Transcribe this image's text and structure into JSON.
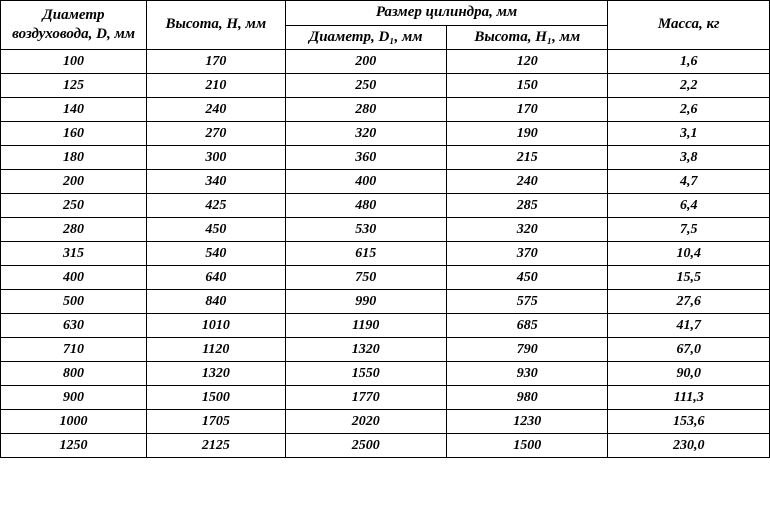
{
  "table": {
    "headers": {
      "diameter": "Диаметр воздуховода, D, мм",
      "height": "Высота, H, мм",
      "cylinder_group": "Размер цилиндра, мм",
      "cylinder_diameter": "Диаметр, D₁, мм",
      "cylinder_height": "Высота, H₁, мм",
      "mass": "Масса, кг"
    },
    "rows": [
      {
        "d": "100",
        "h": "170",
        "cd": "200",
        "ch": "120",
        "m": "1,6"
      },
      {
        "d": "125",
        "h": "210",
        "cd": "250",
        "ch": "150",
        "m": "2,2"
      },
      {
        "d": "140",
        "h": "240",
        "cd": "280",
        "ch": "170",
        "m": "2,6"
      },
      {
        "d": "160",
        "h": "270",
        "cd": "320",
        "ch": "190",
        "m": "3,1"
      },
      {
        "d": "180",
        "h": "300",
        "cd": "360",
        "ch": "215",
        "m": "3,8"
      },
      {
        "d": "200",
        "h": "340",
        "cd": "400",
        "ch": "240",
        "m": "4,7"
      },
      {
        "d": "250",
        "h": "425",
        "cd": "480",
        "ch": "285",
        "m": "6,4"
      },
      {
        "d": "280",
        "h": "450",
        "cd": "530",
        "ch": "320",
        "m": "7,5"
      },
      {
        "d": "315",
        "h": "540",
        "cd": "615",
        "ch": "370",
        "m": "10,4"
      },
      {
        "d": "400",
        "h": "640",
        "cd": "750",
        "ch": "450",
        "m": "15,5"
      },
      {
        "d": "500",
        "h": "840",
        "cd": "990",
        "ch": "575",
        "m": "27,6"
      },
      {
        "d": "630",
        "h": "1010",
        "cd": "1190",
        "ch": "685",
        "m": "41,7"
      },
      {
        "d": "710",
        "h": "1120",
        "cd": "1320",
        "ch": "790",
        "m": "67,0"
      },
      {
        "d": "800",
        "h": "1320",
        "cd": "1550",
        "ch": "930",
        "m": "90,0"
      },
      {
        "d": "900",
        "h": "1500",
        "cd": "1770",
        "ch": "980",
        "m": "111,3"
      },
      {
        "d": "1000",
        "h": "1705",
        "cd": "2020",
        "ch": "1230",
        "m": "153,6"
      },
      {
        "d": "1250",
        "h": "2125",
        "cd": "2500",
        "ch": "1500",
        "m": "230,0"
      }
    ],
    "style": {
      "background_color": "#ffffff",
      "border_color": "#000000",
      "text_color": "#000000",
      "header_fontsize_pt": 11,
      "body_fontsize_pt": 10,
      "font_style": "italic",
      "font_weight": "bold",
      "column_widths_pct": [
        19,
        18,
        21,
        21,
        21
      ],
      "column_align": [
        "center",
        "center",
        "center",
        "center",
        "center"
      ]
    }
  }
}
